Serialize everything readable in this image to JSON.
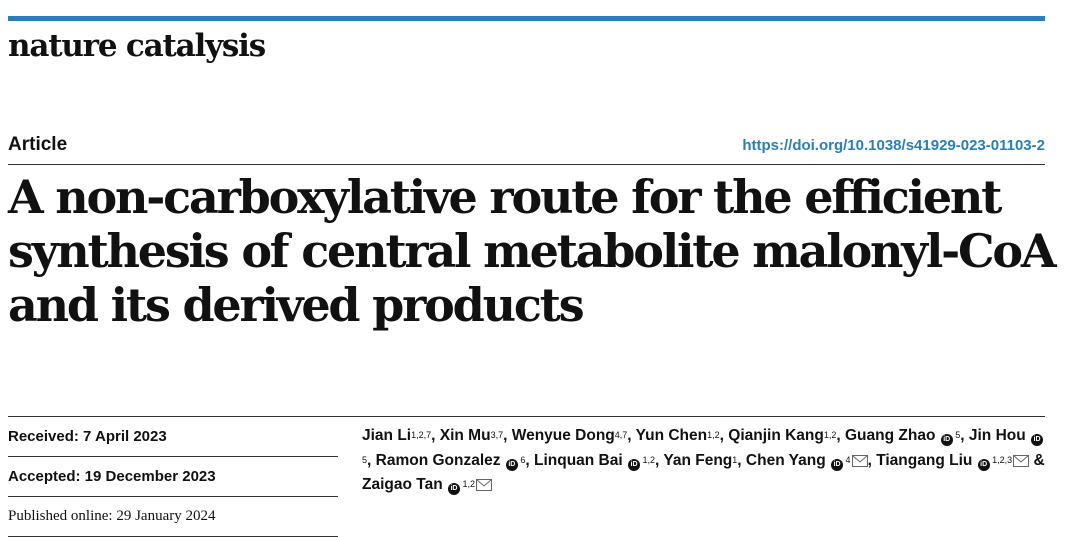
{
  "journal": "nature catalysis",
  "article_type": "Article",
  "doi": "https://doi.org/10.1038/s41929-023-01103-2",
  "title_lines": [
    "A non-carboxylative route for the efficient",
    "synthesis of central metabolite malonyl-CoA",
    "and its derived products"
  ],
  "dates": {
    "received": "Received: 7 April 2023",
    "accepted": "Accepted: 19 December 2023",
    "published": "Published online: 29 January 2024"
  },
  "authors": [
    {
      "name": "Jian Li",
      "aff": "1,2,7",
      "orcid": false,
      "mail": false,
      "sep": ", "
    },
    {
      "name": "Xin Mu",
      "aff": "3,7",
      "orcid": false,
      "mail": false,
      "sep": ", "
    },
    {
      "name": "Wenyue Dong",
      "aff": "4,7",
      "orcid": false,
      "mail": false,
      "sep": ", "
    },
    {
      "name": "Yun Chen",
      "aff": "1,2",
      "orcid": false,
      "mail": false,
      "sep": ", "
    },
    {
      "name": "Qianjin Kang",
      "aff": "1,2",
      "orcid": false,
      "mail": false,
      "sep": ", "
    },
    {
      "name": "Guang Zhao",
      "aff": "5",
      "orcid": true,
      "mail": false,
      "sep": ", "
    },
    {
      "name": "Jin Hou",
      "aff": "5",
      "orcid": true,
      "mail": false,
      "sep": ", "
    },
    {
      "name": "Ramon Gonzalez",
      "aff": "6",
      "orcid": true,
      "mail": false,
      "sep": ", "
    },
    {
      "name": "Linquan Bai",
      "aff": "1,2",
      "orcid": true,
      "mail": false,
      "sep": ", "
    },
    {
      "name": "Yan Feng",
      "aff": "1",
      "orcid": false,
      "mail": false,
      "sep": ", "
    },
    {
      "name": "Chen Yang",
      "aff": "4",
      "orcid": true,
      "mail": true,
      "sep": ", "
    },
    {
      "name": "Tiangang Liu",
      "aff": "1,2,3",
      "orcid": true,
      "mail": true,
      "sep": " & "
    },
    {
      "name": "Zaigao Tan",
      "aff": "1,2",
      "orcid": true,
      "mail": true,
      "sep": ""
    }
  ]
}
